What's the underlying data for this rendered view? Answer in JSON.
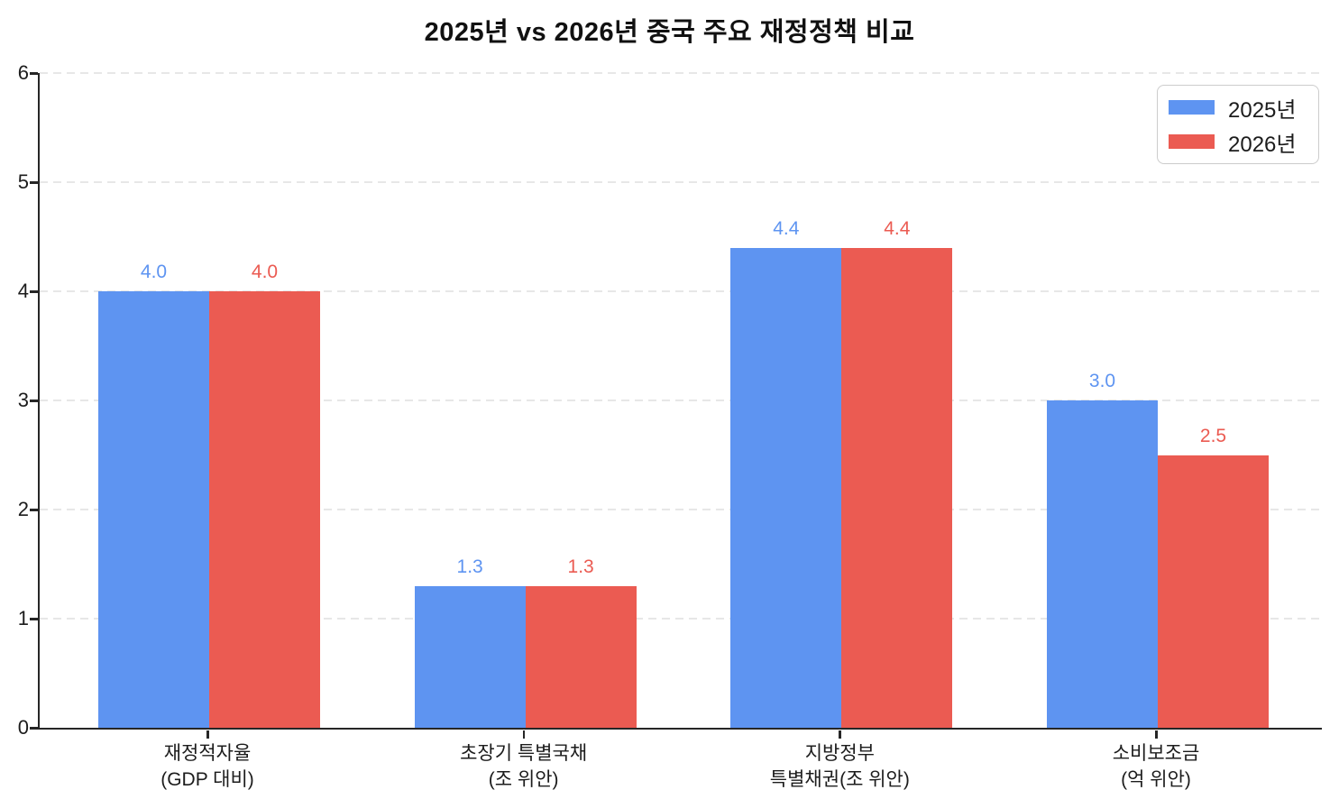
{
  "chart_data": {
    "type": "bar",
    "title": "2025년 vs 2026년 중국 주요 재정정책 비교",
    "categories": [
      "재정적자율\n(GDP 대비)",
      "초장기 특별국채\n(조 위안)",
      "지방정부\n특별채권(조 위안)",
      "소비보조금\n(억 위안)"
    ],
    "series": [
      {
        "name": "2025년",
        "color": "#5E94F1",
        "values": [
          4.0,
          1.3,
          4.4,
          3.0
        ],
        "value_labels": [
          "4.0",
          "1.3",
          "4.4",
          "3.0"
        ]
      },
      {
        "name": "2026년",
        "color": "#EB5B52",
        "values": [
          4.0,
          1.3,
          4.4,
          2.5
        ],
        "value_labels": [
          "4.0",
          "1.3",
          "4.4",
          "2.5"
        ]
      }
    ],
    "xlabel": "",
    "ylabel": "",
    "ylim": [
      0,
      6
    ],
    "yticks": [
      0,
      1,
      2,
      3,
      4,
      5,
      6
    ],
    "grid": "horizontal-dashed",
    "legend_position": "upper-right",
    "bar_value_labels": true,
    "colors": {
      "series_2025": "#5E94F1",
      "series_2026": "#EB5B52",
      "axis": "#262626",
      "gridline": "#e7e7e7",
      "text": "#1c1c1c",
      "background": "#ffffff"
    }
  }
}
